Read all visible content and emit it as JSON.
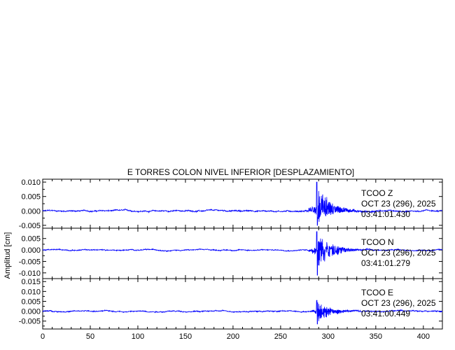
{
  "chart_data": {
    "type": "line",
    "title": "E TORRES COLON NIVEL INFERIOR [DESPLAZAMIENTO]",
    "ylabel": "Amplitud [cm]",
    "xlabel": "",
    "xlim": [
      0,
      420
    ],
    "x_ticks": [
      0,
      50,
      100,
      150,
      200,
      250,
      300,
      350,
      400
    ],
    "x_tick_labels": [
      "0",
      "50",
      "100",
      "150",
      "200",
      "250",
      "300",
      "350",
      "400"
    ],
    "line_color": "#0000ff",
    "grid": false,
    "panels": [
      {
        "station": "TCOO",
        "component": "Z",
        "date": "OCT 23 (296), 2025",
        "time": "03:41:01.430",
        "ylim": [
          -0.006,
          0.011
        ],
        "y_ticks": [
          0.01,
          0.005,
          0.0,
          -0.005
        ],
        "y_tick_labels": [
          "0.010",
          "0.005",
          "0.000",
          "-0.005"
        ],
        "noise_amplitude": 0.0004,
        "event_onset": 275,
        "event_peak_time": 288,
        "event_peak_amplitude": 0.01,
        "event_min_amplitude": -0.005
      },
      {
        "station": "TCOO",
        "component": "N",
        "date": "OCT 23 (296), 2025",
        "time": "03:41:01.279",
        "ylim": [
          -0.0125,
          0.0095
        ],
        "y_ticks": [
          0.005,
          0.0,
          -0.005,
          -0.01
        ],
        "y_tick_labels": [
          "0.005",
          "0.000",
          "-0.005",
          "-0.010"
        ],
        "noise_amplitude": 0.0004,
        "event_onset": 278,
        "event_peak_time": 288,
        "event_peak_amplitude": 0.008,
        "event_min_amplitude": -0.011
      },
      {
        "station": "TCOO",
        "component": "E",
        "date": "OCT 23 (296), 2025",
        "time": "03:41:00.449",
        "ylim": [
          -0.009,
          0.0165
        ],
        "y_ticks": [
          0.015,
          0.01,
          0.005,
          0.0,
          -0.005
        ],
        "y_tick_labels": [
          "0.015",
          "0.010",
          "0.005",
          "0.000",
          "-0.005"
        ],
        "noise_amplitude": 0.0005,
        "event_onset": 280,
        "event_peak_time": 288,
        "event_peak_amplitude": 0.0055,
        "event_min_amplitude": -0.0065
      }
    ]
  }
}
